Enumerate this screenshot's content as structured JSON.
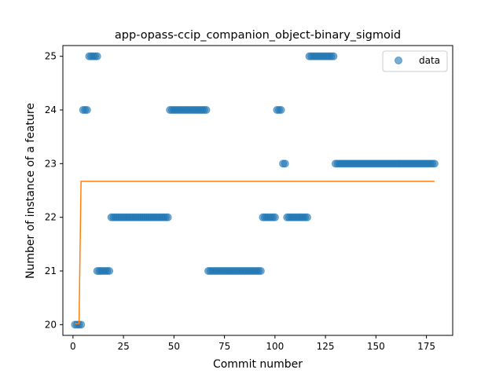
{
  "chart_data": {
    "type": "scatter",
    "title": "app-opass-ccip_companion_object-binary_sigmoid",
    "xlabel": "Commit number",
    "ylabel": "Number of instance of a feature",
    "xlim": [
      -5.0,
      188.0
    ],
    "ylim": [
      19.8,
      25.2
    ],
    "xticks": [
      0,
      25,
      50,
      75,
      100,
      125,
      150,
      175
    ],
    "yticks": [
      20,
      21,
      22,
      23,
      24,
      25
    ],
    "grid": false,
    "legend": {
      "position": "top-right",
      "entries": [
        "data"
      ]
    },
    "colors": {
      "data": "#1f77b4",
      "fit": "#ff7f0e"
    },
    "series": [
      {
        "name": "data",
        "kind": "scatter",
        "runs": [
          {
            "x_start": 1,
            "x_end": 4,
            "y": 20
          },
          {
            "x_start": 5,
            "x_end": 7,
            "y": 24
          },
          {
            "x_start": 8,
            "x_end": 12,
            "y": 25
          },
          {
            "x_start": 12,
            "x_end": 18,
            "y": 21
          },
          {
            "x_start": 19,
            "x_end": 47,
            "y": 22
          },
          {
            "x_start": 48,
            "x_end": 66,
            "y": 24
          },
          {
            "x_start": 67,
            "x_end": 93,
            "y": 21
          },
          {
            "x_start": 94,
            "x_end": 100,
            "y": 22
          },
          {
            "x_start": 101,
            "x_end": 103,
            "y": 24
          },
          {
            "x_start": 104,
            "x_end": 105,
            "y": 23
          },
          {
            "x_start": 106,
            "x_end": 116,
            "y": 22
          },
          {
            "x_start": 117,
            "x_end": 129,
            "y": 25
          },
          {
            "x_start": 130,
            "x_end": 179,
            "y": 23
          }
        ]
      },
      {
        "kind": "line",
        "x": [
          1,
          3,
          4,
          179
        ],
        "y": [
          20.02,
          20.02,
          22.67,
          22.67
        ]
      }
    ]
  }
}
